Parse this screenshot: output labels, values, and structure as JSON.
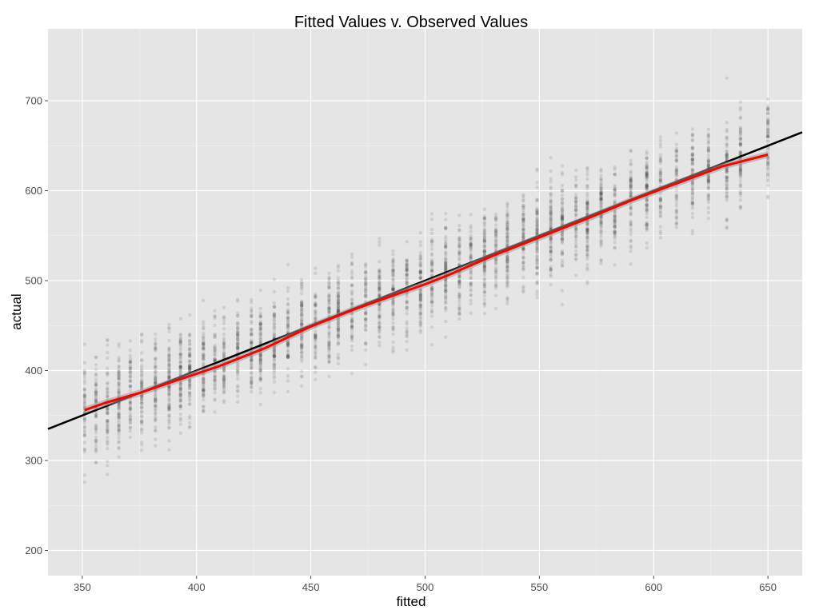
{
  "chart_data": {
    "type": "scatter",
    "title": "Fitted Values v. Observed Values",
    "xlabel": "fitted",
    "ylabel": "actual",
    "xlim": [
      335,
      665
    ],
    "ylim": [
      172,
      780
    ],
    "x_ticks": [
      350,
      400,
      450,
      500,
      550,
      600,
      650
    ],
    "y_ticks": [
      200,
      300,
      400,
      500,
      600,
      700
    ],
    "grid": true,
    "background": "#e5e5e5",
    "grid_color": "#ffffff",
    "point_color": "#333333",
    "point_opacity": 0.12,
    "fitted_levels": [
      351,
      356,
      361,
      366,
      371,
      376,
      382,
      388,
      393,
      397,
      403,
      408,
      412,
      418,
      424,
      428,
      434,
      440,
      446,
      452,
      458,
      462,
      468,
      474,
      480,
      486,
      492,
      498,
      503,
      509,
      515,
      520,
      526,
      531,
      536,
      543,
      549,
      555,
      560,
      566,
      571,
      577,
      583,
      590,
      597,
      603,
      610,
      617,
      624,
      632,
      638,
      650
    ],
    "series": [
      {
        "kind": "reference-line",
        "color": "#000000",
        "x": [
          335,
          665
        ],
        "y": [
          335,
          665
        ]
      },
      {
        "kind": "smoothed-fit",
        "color": "#ff0000",
        "x": [
          351,
          360,
          375,
          390,
          410,
          430,
          450,
          470,
          490,
          500,
          510,
          530,
          550,
          570,
          590,
          610,
          630,
          650
        ],
        "y": [
          356,
          364,
          375,
          388,
          405,
          425,
          449,
          469,
          487,
          496,
          506,
          528,
          548,
          568,
          589,
          608,
          627,
          640
        ]
      }
    ]
  }
}
